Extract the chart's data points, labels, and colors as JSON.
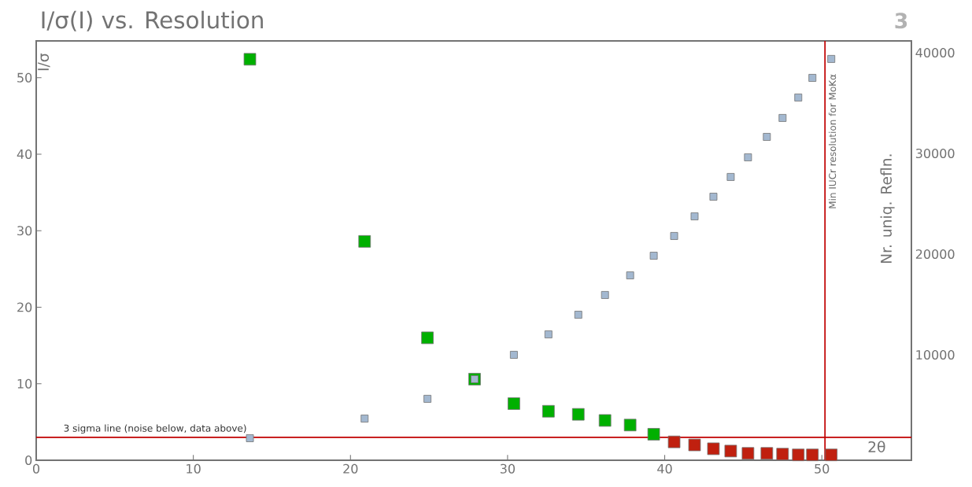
{
  "chart_data": {
    "type": "scatter",
    "title": "I/σ(I) vs. Resolution",
    "xlabel": "2θ",
    "ylabel": "I/σ",
    "y2label": "Nr. uniq. Refln.",
    "annotations": [
      "3"
    ],
    "xlim": [
      0,
      55.7
    ],
    "xticks": [
      0,
      10,
      20,
      30,
      40,
      50
    ],
    "ylim": [
      0,
      54.8
    ],
    "yticks": [
      0,
      10,
      20,
      30,
      40,
      50
    ],
    "y2lim": [
      -470,
      41170
    ],
    "y2ticks": [
      10000,
      20000,
      30000,
      40000
    ],
    "marker": "square",
    "ref_lines": [
      {
        "axis": "y",
        "value": 3,
        "label": "3 sigma line (noise below, data above)",
        "color": "#c00000"
      },
      {
        "axis": "x",
        "value": 50.2,
        "label": "Min IUCr resolution for MoKα",
        "color": "#c00000"
      }
    ],
    "series": [
      {
        "color": "#00b000",
        "x": [
          13.6,
          20.9,
          24.9,
          27.9,
          30.4,
          32.6,
          34.5,
          36.2,
          37.8,
          39.3
        ],
        "values": [
          52.4,
          28.6,
          16.0,
          10.6,
          7.4,
          6.4,
          6.0,
          5.2,
          4.6,
          3.4
        ]
      },
      {
        "color": "#c0200f",
        "x": [
          40.6,
          41.9,
          43.1,
          44.2,
          45.3,
          46.5,
          47.5,
          48.5,
          49.4,
          50.6
        ],
        "values": [
          2.4,
          2.0,
          1.5,
          1.2,
          0.9,
          0.9,
          0.8,
          0.7,
          0.7,
          0.7
        ]
      },
      {
        "color": "#a3b8d0",
        "axis": "y2",
        "x": [
          13.6,
          20.9,
          24.9,
          27.9,
          30.4,
          32.6,
          34.5,
          36.2,
          37.8,
          39.3,
          40.6,
          41.9,
          43.1,
          44.2,
          45.3,
          46.5,
          47.5,
          48.5,
          49.4,
          50.6
        ],
        "values": [
          1720,
          3670,
          5630,
          7580,
          10000,
          12030,
          13980,
          15940,
          17890,
          19840,
          21800,
          23750,
          25700,
          27660,
          29610,
          31640,
          33520,
          35550,
          37500,
          39380
        ]
      }
    ]
  }
}
